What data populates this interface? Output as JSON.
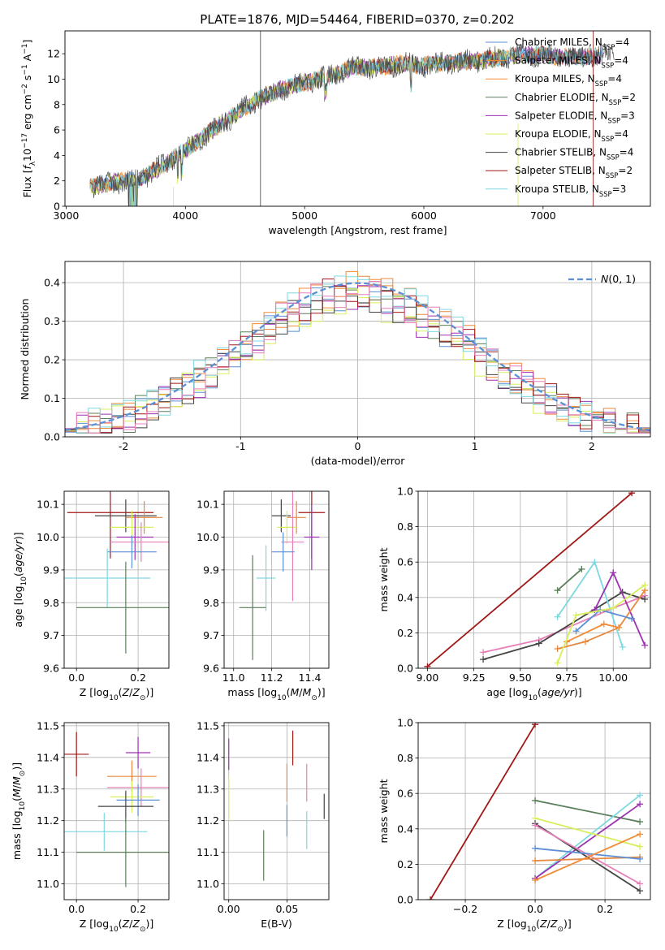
{
  "figure": {
    "title": "PLATE=1876, MJD=54464, FIBERID=0370, z=0.202"
  },
  "colors": {
    "chabrier_miles": "#5b8fd6",
    "salpeter_miles": "#e6883d",
    "kroupa_miles": "#f28c38",
    "chabrier_elodie": "#5a7f5a",
    "salpeter_elodie": "#9b30b0",
    "kroupa_elodie": "#d6ef5a",
    "chabrier_stelib": "#444444",
    "salpeter_stelib": "#a01818",
    "kroupa_stelib": "#7ed8e0",
    "pink": "#e87fb8",
    "gaussian": "#5b8fd6"
  },
  "chart_data": [
    {
      "id": "spectrum",
      "type": "line",
      "xlabel": "wavelength [Angstrom, rest frame]",
      "ylabel": "Flux [f_λ 10^-17 erg cm^-2 s^-1 A^-1]",
      "xlim": [
        2990,
        7900
      ],
      "ylim": [
        0,
        13.8
      ],
      "xticks": [
        3000,
        4000,
        5000,
        6000,
        7000
      ],
      "yticks": [
        0,
        2,
        4,
        6,
        8,
        10,
        12
      ],
      "envelope": {
        "x": [
          3200,
          3400,
          3600,
          3800,
          4000,
          4200,
          4400,
          4600,
          4800,
          5000,
          5200,
          5400,
          5600,
          5800,
          6000,
          6200,
          6400,
          6600,
          6800,
          7000,
          7200,
          7400,
          7800
        ],
        "y": [
          1.5,
          1.9,
          2.1,
          3.1,
          4.4,
          5.8,
          7.1,
          8.4,
          9.2,
          9.7,
          10.2,
          10.9,
          10.9,
          11.2,
          11.1,
          11.3,
          11.4,
          11.6,
          11.9,
          11.9,
          11.7,
          11.8,
          12.0
        ]
      },
      "legend": [
        {
          "label": "Chabrier MILES, N_SSP=4",
          "color": "#5b8fd6"
        },
        {
          "label": "Salpeter MILES, N_SSP=4",
          "color": "#e6883d"
        },
        {
          "label": "Kroupa MILES, N_SSP=4",
          "color": "#f28c38"
        },
        {
          "label": "Chabrier ELODIE, N_SSP=2",
          "color": "#5a7f5a"
        },
        {
          "label": "Salpeter ELODIE, N_SSP=3",
          "color": "#9b30b0"
        },
        {
          "label": "Kroupa ELODIE, N_SSP=4",
          "color": "#d6ef5a"
        },
        {
          "label": "Chabrier STELIB, N_SSP=4",
          "color": "#444444"
        },
        {
          "label": "Salpeter STELIB, N_SSP=2",
          "color": "#a01818"
        },
        {
          "label": "Kroupa STELIB, N_SSP=3",
          "color": "#7ed8e0"
        }
      ],
      "legend_location": "lower right"
    },
    {
      "id": "residuals",
      "type": "histogram",
      "xlabel": "(data-model)/error",
      "ylabel": "Normed distribution",
      "xlim": [
        -2.5,
        2.5
      ],
      "ylim": [
        0,
        0.455
      ],
      "xticks": [
        -2,
        -1,
        0,
        1,
        2
      ],
      "yticks": [
        0.0,
        0.1,
        0.2,
        0.3,
        0.4
      ],
      "bin_width": 0.1,
      "gaussian_label": "N(0,1)",
      "legend_location": "upper right"
    },
    {
      "id": "age_vs_Z",
      "type": "errorbar",
      "xlabel": "Z [log10(Z/Z_sun)]",
      "ylabel": "age [log10(age/yr)]",
      "xlim": [
        -0.04,
        0.3
      ],
      "ylim": [
        9.6,
        10.14
      ],
      "xticks": [
        0.0,
        0.2
      ],
      "yticks": [
        9.6,
        9.7,
        9.8,
        9.9,
        10.0,
        10.1
      ],
      "points": [
        {
          "x": 0.11,
          "xerr": 0.14,
          "y": 10.075,
          "yerr": 0.14,
          "color": "#a01818"
        },
        {
          "x": 0.16,
          "xerr": 0.1,
          "y": 10.065,
          "yerr": 0.05,
          "color": "#444444"
        },
        {
          "x": 0.22,
          "xerr": 0.06,
          "y": 10.06,
          "yerr": 0.05,
          "color": "#e6883d"
        },
        {
          "x": 0.18,
          "xerr": 0.07,
          "y": 10.03,
          "yerr": 0.05,
          "color": "#d6ef5a"
        },
        {
          "x": 0.19,
          "xerr": 0.06,
          "y": 10.0,
          "yerr": 0.07,
          "color": "#9b30b0"
        },
        {
          "x": 0.21,
          "xerr": 0.1,
          "y": 9.985,
          "yerr": 0.06,
          "color": "#e87fb8"
        },
        {
          "x": 0.18,
          "xerr": 0.08,
          "y": 9.955,
          "yerr": 0.05,
          "color": "#5b8fd6"
        },
        {
          "x": 0.1,
          "xerr": 0.14,
          "y": 9.875,
          "yerr": 0.09,
          "color": "#7ed8e0"
        },
        {
          "x": 0.16,
          "xerr": 0.16,
          "y": 9.785,
          "yerr": 0.14,
          "color": "#5a7f5a"
        }
      ]
    },
    {
      "id": "age_vs_mass",
      "type": "errorbar",
      "xlabel": "mass [log10(M/M_sun)]",
      "ylabel": "",
      "xlim": [
        10.95,
        11.5
      ],
      "ylim": [
        9.6,
        10.14
      ],
      "xticks": [
        11.0,
        11.2,
        11.4
      ],
      "yticks": [
        9.6,
        9.7,
        9.8,
        9.9,
        10.0,
        10.1
      ],
      "points": [
        {
          "x": 11.41,
          "xerr": 0.07,
          "y": 10.075,
          "yerr": 0.14,
          "color": "#a01818"
        },
        {
          "x": 11.25,
          "xerr": 0.05,
          "y": 10.065,
          "yerr": 0.05,
          "color": "#444444"
        },
        {
          "x": 11.33,
          "xerr": 0.05,
          "y": 10.06,
          "yerr": 0.05,
          "color": "#e6883d"
        },
        {
          "x": 11.28,
          "xerr": 0.05,
          "y": 10.03,
          "yerr": 0.05,
          "color": "#d6ef5a"
        },
        {
          "x": 11.41,
          "xerr": 0.04,
          "y": 10.0,
          "yerr": 0.1,
          "color": "#9b30b0"
        },
        {
          "x": 11.31,
          "xerr": 0.06,
          "y": 9.985,
          "yerr": 0.18,
          "color": "#e87fb8"
        },
        {
          "x": 11.26,
          "xerr": 0.06,
          "y": 9.955,
          "yerr": 0.06,
          "color": "#5b8fd6"
        },
        {
          "x": 11.17,
          "xerr": 0.05,
          "y": 9.875,
          "yerr": 0.1,
          "color": "#7ed8e0"
        },
        {
          "x": 11.1,
          "xerr": 0.07,
          "y": 9.785,
          "yerr": 0.16,
          "color": "#5a7f5a"
        }
      ]
    },
    {
      "id": "weight_vs_age",
      "type": "line",
      "xlabel": "age [log10(age/yr)]",
      "ylabel": "mass weight",
      "xlim": [
        8.95,
        10.2
      ],
      "ylim": [
        0,
        1
      ],
      "xticks": [
        9.0,
        9.25,
        9.5,
        9.75,
        10.0
      ],
      "xticklabels": [
        "9.00",
        "9.25",
        "9.50",
        "9.75",
        "10.00"
      ],
      "yticks": [
        0.0,
        0.2,
        0.4,
        0.6,
        0.8,
        1.0
      ],
      "series": [
        {
          "color": "#a01818",
          "x": [
            9.0,
            10.1
          ],
          "y": [
            0.01,
            0.99
          ]
        },
        {
          "color": "#e87fb8",
          "x": [
            9.3,
            9.6,
            10.0,
            10.17
          ],
          "y": [
            0.09,
            0.16,
            0.34,
            0.41
          ]
        },
        {
          "color": "#444444",
          "x": [
            9.3,
            9.6,
            10.05,
            10.17
          ],
          "y": [
            0.05,
            0.14,
            0.43,
            0.39
          ]
        },
        {
          "color": "#5a7f5a",
          "x": [
            9.7,
            9.83
          ],
          "y": [
            0.44,
            0.56
          ]
        },
        {
          "color": "#7ed8e0",
          "x": [
            9.7,
            9.9,
            10.05
          ],
          "y": [
            0.29,
            0.6,
            0.12
          ]
        },
        {
          "color": "#9b30b0",
          "x": [
            9.9,
            10.0,
            10.17
          ],
          "y": [
            0.33,
            0.54,
            0.13
          ]
        },
        {
          "color": "#e6883d",
          "x": [
            9.7,
            9.85,
            10.03,
            10.17
          ],
          "y": [
            0.11,
            0.15,
            0.23,
            0.44
          ]
        },
        {
          "color": "#f28c38",
          "x": [
            9.75,
            9.95,
            10.03
          ],
          "y": [
            0.15,
            0.25,
            0.23
          ]
        },
        {
          "color": "#5b8fd6",
          "x": [
            9.8,
            9.93,
            10.1
          ],
          "y": [
            0.21,
            0.33,
            0.28
          ]
        },
        {
          "color": "#d6ef5a",
          "x": [
            9.7,
            9.8,
            10.0,
            10.17
          ],
          "y": [
            0.03,
            0.3,
            0.34,
            0.47
          ]
        }
      ]
    },
    {
      "id": "mass_vs_Z",
      "type": "errorbar",
      "xlabel": "Z [log10(Z/Z_sun)]",
      "ylabel": "mass [log10(M/M_sun)]",
      "xlim": [
        -0.04,
        0.3
      ],
      "ylim": [
        10.95,
        11.51
      ],
      "xticks": [
        0.0,
        0.2
      ],
      "yticks": [
        11.0,
        11.1,
        11.2,
        11.3,
        11.4,
        11.5
      ],
      "points": [
        {
          "x": 0.0,
          "xerr": 0.04,
          "y": 11.41,
          "yerr": 0.07,
          "color": "#a01818"
        },
        {
          "x": 0.2,
          "xerr": 0.04,
          "y": 11.415,
          "yerr": 0.05,
          "color": "#9b30b0"
        },
        {
          "x": 0.18,
          "xerr": 0.08,
          "y": 11.34,
          "yerr": 0.05,
          "color": "#e6883d"
        },
        {
          "x": 0.21,
          "xerr": 0.11,
          "y": 11.305,
          "yerr": 0.06,
          "color": "#e87fb8"
        },
        {
          "x": 0.18,
          "xerr": 0.07,
          "y": 11.275,
          "yerr": 0.05,
          "color": "#d6ef5a"
        },
        {
          "x": 0.2,
          "xerr": 0.07,
          "y": 11.265,
          "yerr": 0.05,
          "color": "#5b8fd6"
        },
        {
          "x": 0.16,
          "xerr": 0.09,
          "y": 11.245,
          "yerr": 0.05,
          "color": "#444444"
        },
        {
          "x": 0.09,
          "xerr": 0.14,
          "y": 11.165,
          "yerr": 0.06,
          "color": "#7ed8e0"
        },
        {
          "x": 0.16,
          "xerr": 0.16,
          "y": 11.1,
          "yerr": 0.11,
          "color": "#5a7f5a"
        }
      ]
    },
    {
      "id": "mass_vs_ebv",
      "type": "errorbar",
      "xlabel": "E(B-V)",
      "ylabel": "",
      "xlim": [
        -0.004,
        0.086
      ],
      "ylim": [
        10.95,
        11.51
      ],
      "xticks": [
        0.0,
        0.05
      ],
      "xticklabels": [
        "0.00",
        "0.05"
      ],
      "yticks": [
        11.0,
        11.1,
        11.2,
        11.3,
        11.4,
        11.5
      ],
      "points": [
        {
          "x": 0.0,
          "xerr": 0.0,
          "y": 11.41,
          "yerr": 0.05,
          "color": "#9b30b0"
        },
        {
          "x": 0.0,
          "xerr": 0.0,
          "y": 11.27,
          "yerr": 0.07,
          "color": "#d6ef5a"
        },
        {
          "x": 0.03,
          "xerr": 0.0,
          "y": 11.09,
          "yerr": 0.08,
          "color": "#5a7f5a"
        },
        {
          "x": 0.05,
          "xerr": 0.0,
          "y": 11.32,
          "yerr": 0.06,
          "color": "#e6883d"
        },
        {
          "x": 0.05,
          "xerr": 0.0,
          "y": 11.2,
          "yerr": 0.05,
          "color": "#5b8fd6"
        },
        {
          "x": 0.055,
          "xerr": 0.0,
          "y": 11.43,
          "yerr": 0.055,
          "color": "#a01818"
        },
        {
          "x": 0.067,
          "xerr": 0.0,
          "y": 11.32,
          "yerr": 0.06,
          "color": "#e87fb8"
        },
        {
          "x": 0.067,
          "xerr": 0.0,
          "y": 11.17,
          "yerr": 0.06,
          "color": "#7ed8e0"
        },
        {
          "x": 0.082,
          "xerr": 0.0,
          "y": 11.245,
          "yerr": 0.04,
          "color": "#444444"
        }
      ]
    },
    {
      "id": "weight_vs_Z",
      "type": "line",
      "xlabel": "Z [log10(Z/Z_sun)]",
      "ylabel": "mass weight",
      "xlim": [
        -0.335,
        0.33
      ],
      "ylim": [
        0,
        1
      ],
      "xticks": [
        -0.2,
        0.0,
        0.2
      ],
      "xticklabels": [
        "−0.2",
        "0.0",
        "0.2"
      ],
      "yticks": [
        0.0,
        0.2,
        0.4,
        0.6,
        0.8,
        1.0
      ],
      "series": [
        {
          "color": "#a01818",
          "x": [
            -0.3,
            0.0
          ],
          "y": [
            0.0,
            0.99
          ]
        },
        {
          "color": "#5a7f5a",
          "x": [
            0.0,
            0.3
          ],
          "y": [
            0.56,
            0.44
          ]
        },
        {
          "color": "#7ed8e0",
          "x": [
            0.0,
            0.3
          ],
          "y": [
            0.12,
            0.59
          ]
        },
        {
          "color": "#9b30b0",
          "x": [
            0.0,
            0.3
          ],
          "y": [
            0.12,
            0.54
          ]
        },
        {
          "color": "#d6ef5a",
          "x": [
            0.0,
            0.3
          ],
          "y": [
            0.46,
            0.3
          ]
        },
        {
          "color": "#444444",
          "x": [
            0.0,
            0.3
          ],
          "y": [
            0.43,
            0.05
          ]
        },
        {
          "color": "#e87fb8",
          "x": [
            0.0,
            0.3
          ],
          "y": [
            0.42,
            0.09
          ]
        },
        {
          "color": "#e6883d",
          "x": [
            0.0,
            0.3
          ],
          "y": [
            0.22,
            0.24
          ]
        },
        {
          "color": "#5b8fd6",
          "x": [
            0.0,
            0.3
          ],
          "y": [
            0.29,
            0.23
          ]
        },
        {
          "color": "#f28c38",
          "x": [
            0.0,
            0.3
          ],
          "y": [
            0.11,
            0.37
          ]
        }
      ]
    }
  ]
}
